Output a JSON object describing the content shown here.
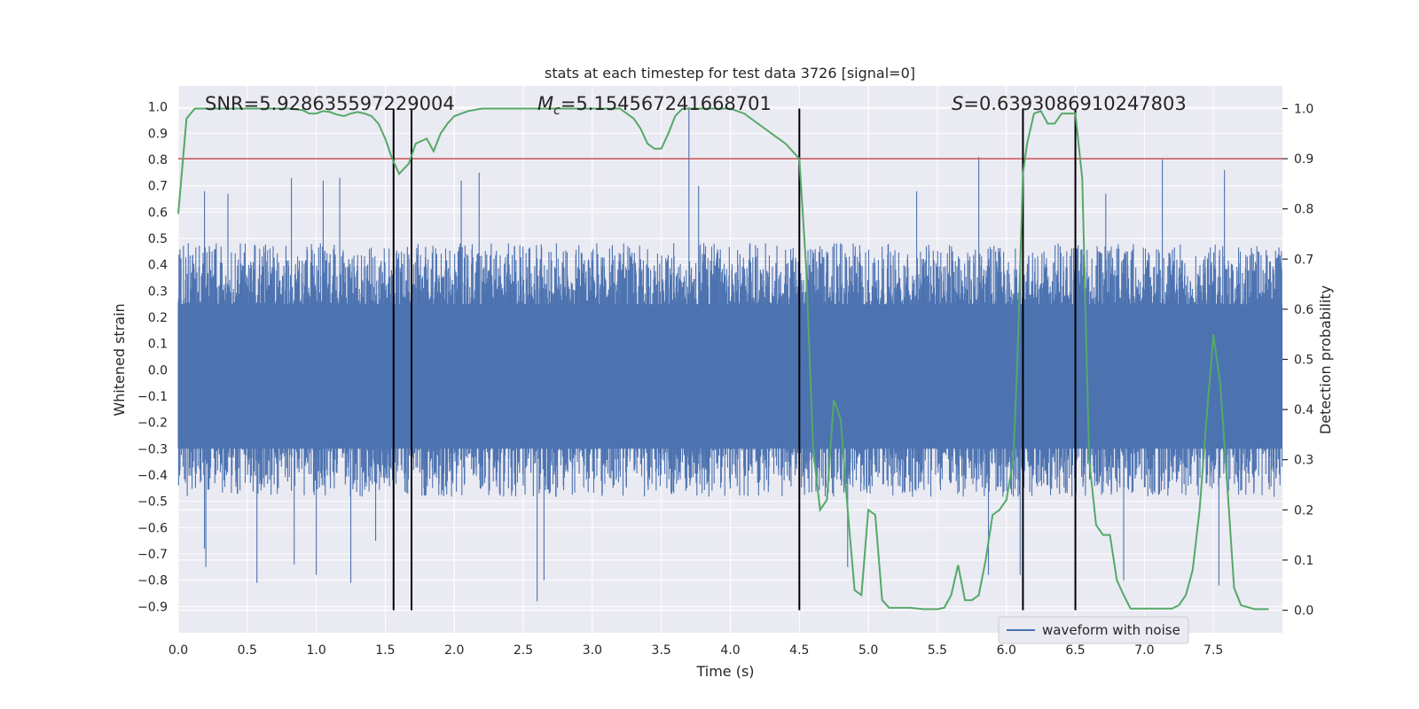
{
  "chart_data": {
    "type": "line",
    "title": "stats at each timestep for test data 3726 [signal=0]",
    "xlabel": "Time (s)",
    "ylabel_left": "Whitened strain",
    "ylabel_right": "Detection probability",
    "xlim": [
      0,
      8
    ],
    "ylim_left": [
      -1.0,
      1.08
    ],
    "ylim_right": [
      -0.045,
      1.045
    ],
    "x_ticks": [
      0.0,
      0.5,
      1.0,
      1.5,
      2.0,
      2.5,
      3.0,
      3.5,
      4.0,
      4.5,
      5.0,
      5.5,
      6.0,
      6.5,
      7.0,
      7.5
    ],
    "x_tick_labels": [
      "0.0",
      "0.5",
      "1.0",
      "1.5",
      "2.0",
      "2.5",
      "3.0",
      "3.5",
      "4.0",
      "4.5",
      "5.0",
      "5.5",
      "6.0",
      "6.5",
      "7.0",
      "7.5"
    ],
    "y_ticks_left": [
      1.0,
      0.9,
      0.8,
      0.7,
      0.6,
      0.5,
      0.4,
      0.3,
      0.2,
      0.1,
      0.0,
      -0.1,
      -0.2,
      -0.3,
      -0.4,
      -0.5,
      -0.6,
      -0.7,
      -0.8,
      -0.9
    ],
    "y_tick_labels_left": [
      "1.0",
      "0.9",
      "0.8",
      "0.7",
      "0.6",
      "0.5",
      "0.4",
      "0.3",
      "0.2",
      "0.1",
      "0.0",
      "−0.1",
      "−0.2",
      "−0.3",
      "−0.4",
      "−0.5",
      "−0.6",
      "−0.7",
      "−0.8",
      "−0.9"
    ],
    "y_ticks_right": [
      1.0,
      0.9,
      0.8,
      0.7,
      0.6,
      0.5,
      0.4,
      0.3,
      0.2,
      0.1,
      0.0
    ],
    "y_tick_labels_right": [
      "1.0",
      "0.9",
      "0.8",
      "0.7",
      "0.6",
      "0.5",
      "0.4",
      "0.3",
      "0.2",
      "0.1",
      "0.0"
    ],
    "annotations": [
      "SNR=5.928635597229004",
      "M_c=5.154567241668701",
      "S=0.6393086910247803"
    ],
    "threshold_right": 0.9,
    "event_lines_x": [
      1.56,
      1.69,
      4.5,
      6.12,
      6.5
    ],
    "legend": {
      "entries": [
        "waveform with noise"
      ],
      "placement": "lower-right"
    },
    "grid": true,
    "colors": {
      "waveform": "#4c72b0",
      "probability": "#55a868",
      "threshold": "#c44e52",
      "event_lines": "#000000",
      "axes_background": "#eaeaf2",
      "grid": "#ffffff"
    },
    "series": [
      {
        "name": "waveform with noise",
        "axis": "left",
        "style": "dense noise",
        "envelope_typical": 0.42,
        "peaks": [
          {
            "x": 0.19,
            "y": 0.68
          },
          {
            "x": 0.19,
            "y": -0.68
          },
          {
            "x": 0.36,
            "y": 0.67
          },
          {
            "x": 0.2,
            "y": -0.75
          },
          {
            "x": 0.57,
            "y": -0.81
          },
          {
            "x": 0.82,
            "y": 0.73
          },
          {
            "x": 0.84,
            "y": -0.74
          },
          {
            "x": 1.0,
            "y": -0.78
          },
          {
            "x": 1.05,
            "y": 0.72
          },
          {
            "x": 1.17,
            "y": 0.73
          },
          {
            "x": 1.25,
            "y": -0.81
          },
          {
            "x": 1.43,
            "y": -0.65
          },
          {
            "x": 2.05,
            "y": 0.72
          },
          {
            "x": 2.18,
            "y": 0.75
          },
          {
            "x": 2.6,
            "y": -0.88
          },
          {
            "x": 2.65,
            "y": -0.8
          },
          {
            "x": 3.7,
            "y": 1.0
          },
          {
            "x": 3.77,
            "y": 0.7
          },
          {
            "x": 4.5,
            "y": -0.64
          },
          {
            "x": 4.85,
            "y": -0.75
          },
          {
            "x": 5.35,
            "y": 0.68
          },
          {
            "x": 5.8,
            "y": 0.81
          },
          {
            "x": 5.87,
            "y": -0.78
          },
          {
            "x": 6.1,
            "y": -0.78
          },
          {
            "x": 6.72,
            "y": 0.67
          },
          {
            "x": 6.85,
            "y": -0.8
          },
          {
            "x": 7.13,
            "y": 0.8
          },
          {
            "x": 7.58,
            "y": 0.76
          },
          {
            "x": 7.54,
            "y": -0.82
          }
        ]
      },
      {
        "name": "",
        "axis": "right",
        "x": [
          0.0,
          0.06,
          0.12,
          0.2,
          0.3,
          0.4,
          0.5,
          0.6,
          0.7,
          0.8,
          0.9,
          0.95,
          1.0,
          1.05,
          1.1,
          1.15,
          1.2,
          1.25,
          1.3,
          1.35,
          1.4,
          1.45,
          1.5,
          1.55,
          1.6,
          1.67,
          1.72,
          1.8,
          1.85,
          1.9,
          1.95,
          2.0,
          2.1,
          2.2,
          2.3,
          2.5,
          3.0,
          3.2,
          3.3,
          3.35,
          3.4,
          3.45,
          3.5,
          3.55,
          3.6,
          3.65,
          3.7,
          3.75,
          3.8,
          4.0,
          4.1,
          4.2,
          4.3,
          4.4,
          4.5,
          4.55,
          4.6,
          4.65,
          4.7,
          4.75,
          4.8,
          4.85,
          4.9,
          4.95,
          5.0,
          5.05,
          5.1,
          5.15,
          5.2,
          5.3,
          5.4,
          5.5,
          5.55,
          5.6,
          5.65,
          5.7,
          5.75,
          5.8,
          5.85,
          5.9,
          5.95,
          6.0,
          6.05,
          6.08,
          6.12,
          6.15,
          6.2,
          6.25,
          6.3,
          6.35,
          6.4,
          6.45,
          6.5,
          6.55,
          6.6,
          6.65,
          6.7,
          6.75,
          6.8,
          6.85,
          6.9,
          7.0,
          7.1,
          7.2,
          7.25,
          7.3,
          7.35,
          7.4,
          7.45,
          7.5,
          7.55,
          7.6,
          7.65,
          7.7,
          7.8,
          7.9
        ],
        "y": [
          0.79,
          0.98,
          1.0,
          1.0,
          1.0,
          1.0,
          1.0,
          1.0,
          1.0,
          1.0,
          0.997,
          0.99,
          0.99,
          0.995,
          0.993,
          0.988,
          0.985,
          0.99,
          0.993,
          0.99,
          0.985,
          0.97,
          0.94,
          0.9,
          0.87,
          0.89,
          0.93,
          0.94,
          0.915,
          0.95,
          0.97,
          0.985,
          0.995,
          1.0,
          1.0,
          1.0,
          1.0,
          1.0,
          0.98,
          0.96,
          0.93,
          0.92,
          0.92,
          0.95,
          0.985,
          0.999,
          1.0,
          1.0,
          1.0,
          1.0,
          0.99,
          0.97,
          0.95,
          0.93,
          0.9,
          0.68,
          0.32,
          0.2,
          0.22,
          0.42,
          0.38,
          0.2,
          0.04,
          0.03,
          0.2,
          0.19,
          0.02,
          0.005,
          0.005,
          0.005,
          0.002,
          0.002,
          0.005,
          0.03,
          0.09,
          0.02,
          0.02,
          0.03,
          0.1,
          0.19,
          0.2,
          0.22,
          0.3,
          0.5,
          0.87,
          0.93,
          0.99,
          0.995,
          0.97,
          0.97,
          0.99,
          0.99,
          0.99,
          0.86,
          0.3,
          0.17,
          0.15,
          0.15,
          0.06,
          0.03,
          0.003,
          0.003,
          0.003,
          0.003,
          0.01,
          0.03,
          0.08,
          0.2,
          0.38,
          0.55,
          0.45,
          0.25,
          0.045,
          0.01,
          0.002,
          0.002
        ]
      }
    ]
  }
}
